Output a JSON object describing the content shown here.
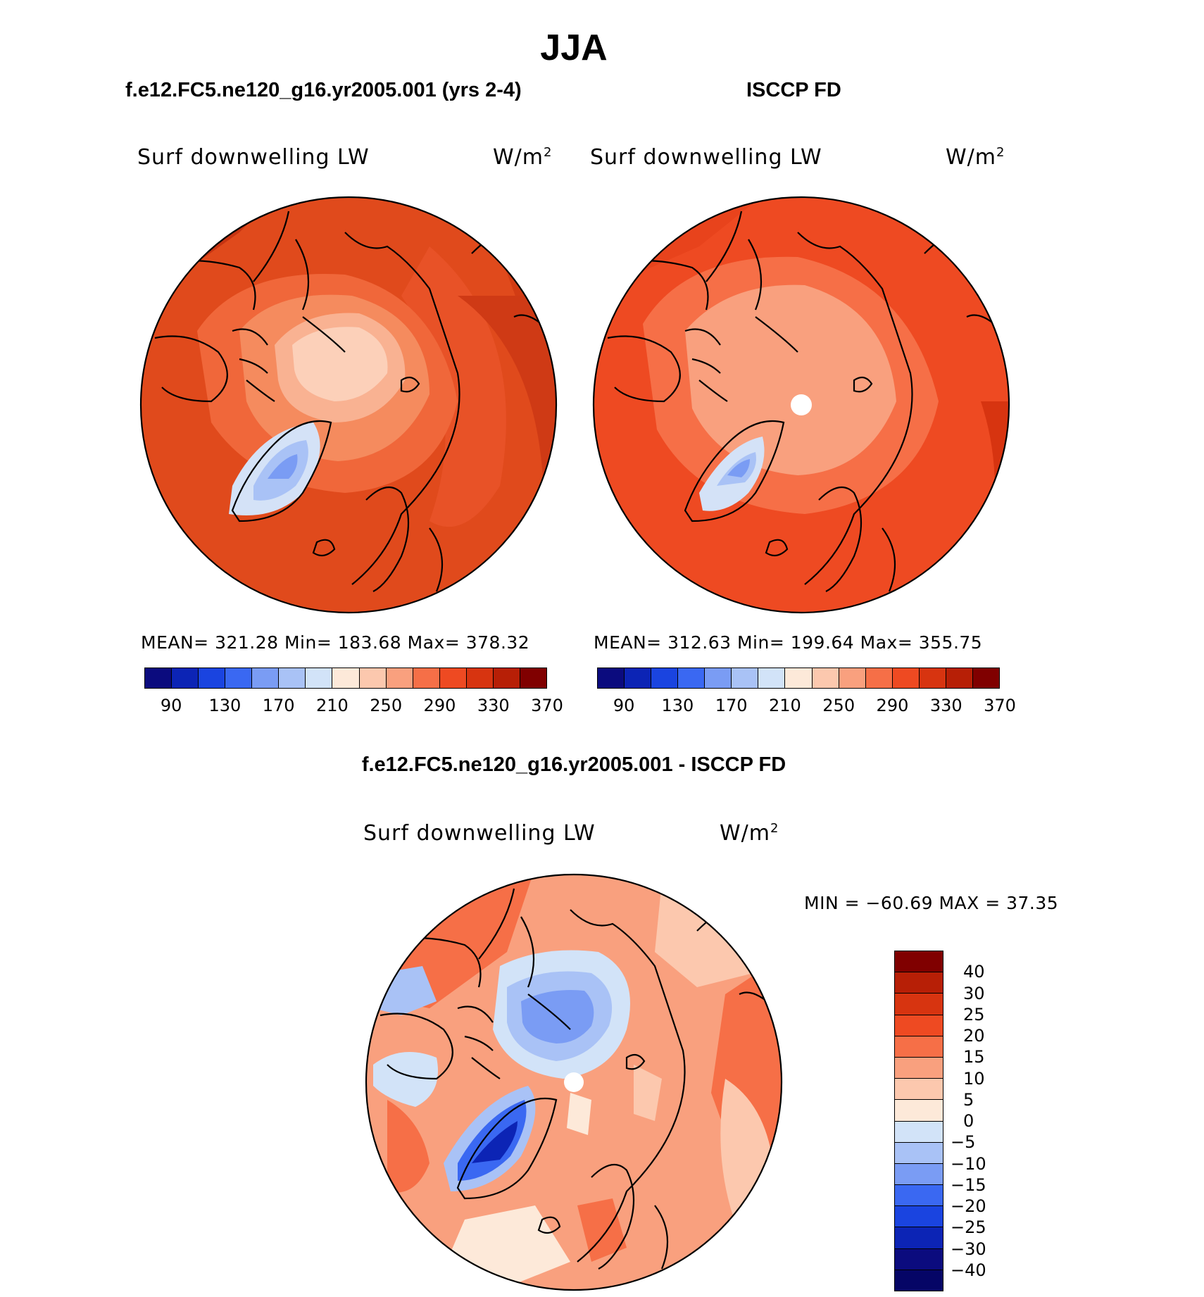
{
  "title": "JJA",
  "panels": [
    {
      "case_title": "f.e12.FC5.ne120_g16.yr2005.001 (yrs 2-4)",
      "variable": "Surf downwelling LW",
      "units_base": "W/m",
      "units_exp": "2",
      "stats": "MEAN= 321.28   Min= 183.68   Max= 378.32"
    },
    {
      "case_title": "ISCCP FD",
      "variable": "Surf downwelling LW",
      "units_base": "W/m",
      "units_exp": "2",
      "stats": "MEAN= 312.63   Min= 199.64   Max= 355.75"
    },
    {
      "case_title": "f.e12.FC5.ne120_g16.yr2005.001 - ISCCP FD",
      "variable": "Surf downwelling LW",
      "units_base": "W/m",
      "units_exp": "2",
      "stats": "MIN = −60.69 MAX =   37.35"
    }
  ],
  "chart_data": [
    {
      "type": "heatmap",
      "projection": "north polar stereographic",
      "panel": "f.e12.FC5.ne120_g16.yr2005.001 (yrs 2-4)",
      "variable": "Surf downwelling LW",
      "units": "W/m2",
      "mean": 321.28,
      "min": 183.68,
      "max": 378.32,
      "colorbar_ticks": [
        "90",
        "130",
        "170",
        "210",
        "250",
        "290",
        "330",
        "370"
      ],
      "colorbar_colors": [
        "#0b0b7e",
        "#0c24b5",
        "#1a44e0",
        "#3a68f2",
        "#7a9cf4",
        "#a9c2f6",
        "#d2e3f8",
        "#fde9d9",
        "#fcc8ae",
        "#f9a07e",
        "#f66f47",
        "#ee4a22",
        "#d73410",
        "#b71f06",
        "#800000"
      ]
    },
    {
      "type": "heatmap",
      "projection": "north polar stereographic",
      "panel": "ISCCP FD",
      "variable": "Surf downwelling LW",
      "units": "W/m2",
      "mean": 312.63,
      "min": 199.64,
      "max": 355.75,
      "colorbar_ticks": [
        "90",
        "130",
        "170",
        "210",
        "250",
        "290",
        "330",
        "370"
      ],
      "colorbar_colors": [
        "#0b0b7e",
        "#0c24b5",
        "#1a44e0",
        "#3a68f2",
        "#7a9cf4",
        "#a9c2f6",
        "#d2e3f8",
        "#fde9d9",
        "#fcc8ae",
        "#f9a07e",
        "#f66f47",
        "#ee4a22",
        "#d73410",
        "#b71f06",
        "#800000"
      ]
    },
    {
      "type": "heatmap",
      "projection": "north polar stereographic",
      "panel": "f.e12.FC5.ne120_g16.yr2005.001 - ISCCP FD",
      "variable": "Surf downwelling LW",
      "units": "W/m2",
      "min": -60.69,
      "max": 37.35,
      "colorbar_ticks": [
        "40",
        "30",
        "25",
        "20",
        "15",
        "10",
        "5",
        "0",
        "−5",
        "−10",
        "−15",
        "−20",
        "−25",
        "−30",
        "−40"
      ],
      "colorbar_colors": [
        "#800000",
        "#b71f06",
        "#d73410",
        "#ee4a22",
        "#f66f47",
        "#f9a07e",
        "#fcc8ae",
        "#fde9d9",
        "#d2e3f8",
        "#a9c2f6",
        "#7a9cf4",
        "#3a68f2",
        "#1a44e0",
        "#0c24b5",
        "#0b0b7e",
        "#050566"
      ]
    }
  ]
}
